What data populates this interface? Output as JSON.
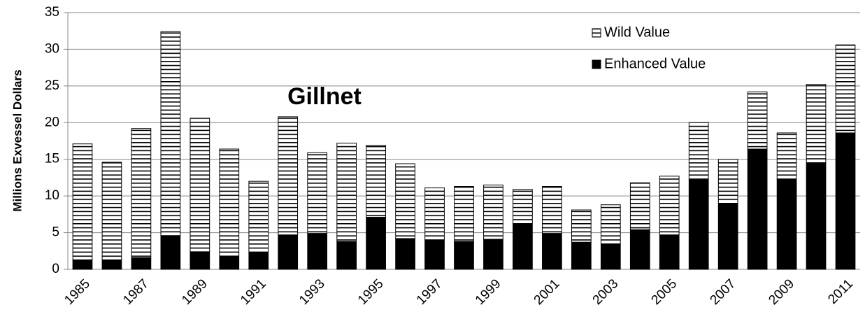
{
  "chart_data": {
    "type": "stacked_bar",
    "annotation": "Gillnet",
    "y_label": "Millions Exvessel Dollars",
    "categories": [
      "1985",
      null,
      "1987",
      null,
      "1989",
      null,
      "1991",
      null,
      "1993",
      null,
      "1995",
      null,
      "1997",
      null,
      "1999",
      null,
      "2001",
      null,
      "2003",
      null,
      "2005",
      null,
      "2007",
      null,
      "2009",
      null,
      "2011"
    ],
    "series": [
      {
        "name": "Enhanced Value",
        "color": "#000000",
        "pattern": "solid",
        "values": [
          1.3,
          1.3,
          1.6,
          4.6,
          2.4,
          1.8,
          2.3,
          4.7,
          4.9,
          3.8,
          7.1,
          4.2,
          4.0,
          3.8,
          4.1,
          6.2,
          4.9,
          3.7,
          3.4,
          5.4,
          4.7,
          12.2,
          8.9,
          16.4,
          12.3,
          14.4,
          18.6
        ]
      },
      {
        "name": "Wild Value",
        "color": "#ffffff",
        "pattern": "horizontal",
        "values": [
          15.8,
          13.3,
          17.6,
          27.8,
          18.2,
          14.6,
          9.7,
          16.1,
          11.0,
          13.4,
          9.8,
          10.2,
          7.1,
          7.5,
          7.4,
          4.7,
          6.4,
          4.4,
          5.4,
          6.4,
          8.0,
          7.8,
          6.1,
          7.8,
          6.3,
          10.8,
          12.0
        ]
      }
    ],
    "ylim": [
      0,
      35
    ],
    "yticks": [
      0,
      5,
      10,
      15,
      20,
      25,
      30,
      35
    ],
    "grid": true
  }
}
